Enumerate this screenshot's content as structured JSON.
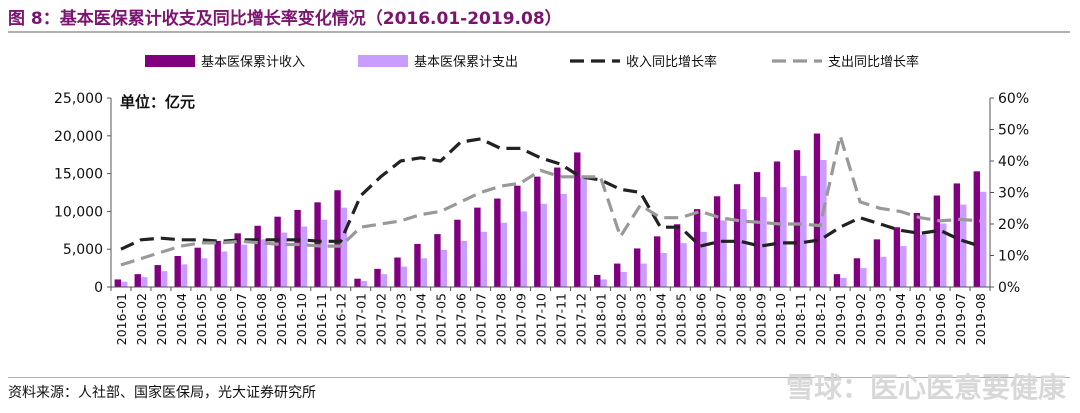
{
  "header": {
    "title": "图 8：基本医保累计收支及同比增长率变化情况（2016.01-2019.08）"
  },
  "footer": {
    "source": "资料来源：人社部、国家医保局，光大证券研究所",
    "watermark": "雪球：医心医意要健康"
  },
  "chart_data": {
    "type": "bar",
    "unit_label": "单位：亿元",
    "categories": [
      "2016-01",
      "2016-02",
      "2016-03",
      "2016-04",
      "2016-05",
      "2016-06",
      "2016-07",
      "2016-08",
      "2016-09",
      "2016-10",
      "2016-11",
      "2016-12",
      "2017-01",
      "2017-02",
      "2017-03",
      "2017-04",
      "2017-05",
      "2017-06",
      "2017-07",
      "2017-08",
      "2017-09",
      "2017-10",
      "2017-11",
      "2017-12",
      "2018-01",
      "2018-02",
      "2018-03",
      "2018-04",
      "2018-05",
      "2018-06",
      "2018-07",
      "2018-08",
      "2018-09",
      "2018-10",
      "2018-11",
      "2018-12",
      "2019-01",
      "2019-02",
      "2019-03",
      "2019-04",
      "2019-05",
      "2019-06",
      "2019-07",
      "2019-08"
    ],
    "y_left": {
      "min": 0,
      "max": 25000,
      "ticks": [
        "0",
        "5,000",
        "10,000",
        "15,000",
        "20,000",
        "25,000"
      ]
    },
    "y_right": {
      "min": 0,
      "max": 60,
      "ticks": [
        "0%",
        "10%",
        "20%",
        "30%",
        "40%",
        "50%",
        "60%"
      ]
    },
    "series": [
      {
        "name": "基本医保累计收入",
        "kind": "bar",
        "axis": "left",
        "color": "#800080",
        "values": [
          1000,
          1700,
          2900,
          4100,
          5200,
          6100,
          7100,
          8100,
          9300,
          10200,
          11200,
          12800,
          1100,
          2400,
          3900,
          5700,
          7000,
          8900,
          10500,
          11700,
          13400,
          14600,
          15800,
          17800,
          1600,
          3100,
          5100,
          6700,
          8300,
          10300,
          12000,
          13600,
          15200,
          16600,
          18100,
          20300,
          1700,
          3800,
          6300,
          7900,
          9800,
          12100,
          13700,
          15300
        ]
      },
      {
        "name": "基本医保累计支出",
        "kind": "bar",
        "axis": "left",
        "color": "#c99cff",
        "values": [
          700,
          1300,
          2100,
          3000,
          3800,
          4700,
          5600,
          6300,
          7200,
          8000,
          8900,
          10500,
          800,
          1700,
          2700,
          3800,
          4900,
          6100,
          7300,
          8500,
          10000,
          11000,
          12300,
          14400,
          1000,
          2000,
          3100,
          4500,
          5800,
          7300,
          8800,
          10300,
          11900,
          13200,
          14700,
          16800,
          1200,
          2500,
          4000,
          5400,
          6900,
          8400,
          10900,
          12600
        ]
      },
      {
        "name": "收入同比增长率",
        "kind": "line",
        "axis": "right",
        "color": "#222222",
        "dash": "dashed",
        "values": [
          12,
          15,
          15.5,
          15,
          15,
          14.5,
          15,
          15,
          15,
          15,
          14.5,
          14.5,
          29,
          35,
          40,
          41,
          40,
          46,
          47,
          44,
          44,
          41,
          39,
          35,
          34,
          31,
          30,
          19,
          19,
          13,
          14.5,
          14.5,
          13,
          14,
          14,
          15,
          19,
          22,
          20,
          18,
          17,
          18,
          15,
          13
        ]
      },
      {
        "name": "支出同比增长率",
        "kind": "line",
        "axis": "right",
        "color": "#999999",
        "dash": "dashed",
        "values": [
          7,
          9,
          11,
          13,
          14,
          14,
          14.5,
          14,
          13.5,
          13.5,
          13,
          13,
          19,
          20,
          21,
          23,
          24,
          27,
          30,
          32,
          33,
          37,
          35,
          35,
          35,
          16,
          26,
          22,
          22,
          24,
          22,
          21,
          20.5,
          20,
          20,
          19.5,
          48,
          27,
          25,
          24,
          22,
          21,
          21.5,
          21
        ]
      }
    ],
    "legend_position": "top",
    "grid": false
  }
}
